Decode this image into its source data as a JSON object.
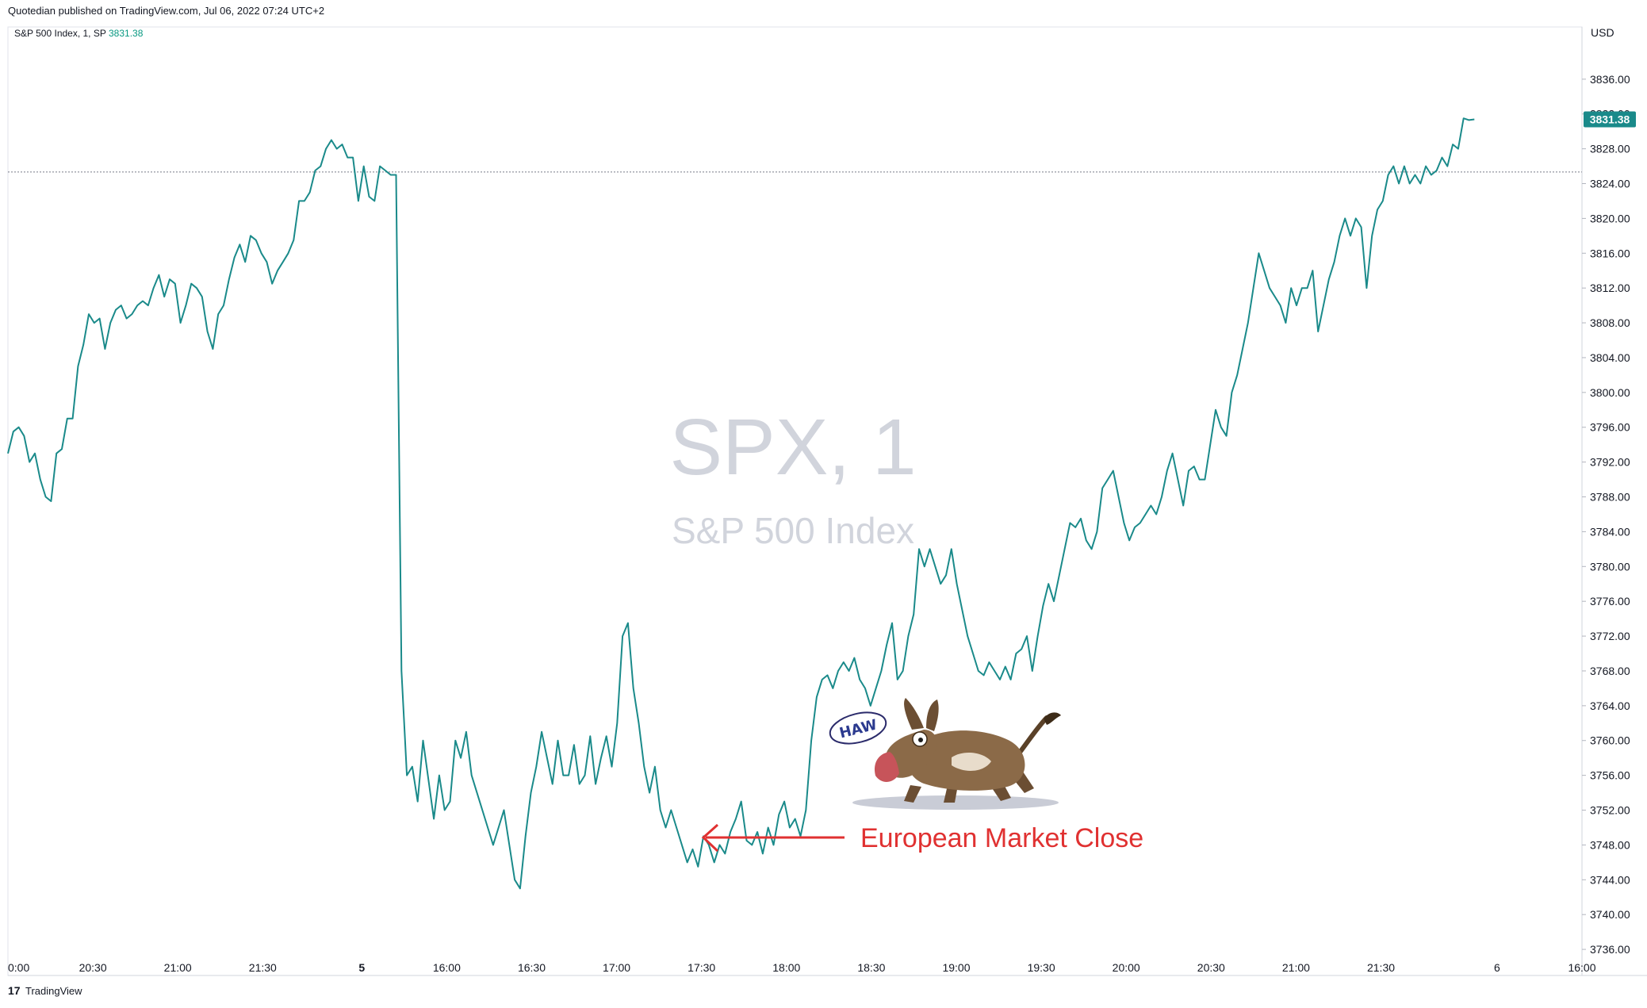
{
  "header": {
    "publisher": "Quotedian published on TradingView.com, Jul 06, 2022 07:24 UTC+2",
    "symbol": "S&P 500 Index, 1, SP",
    "last_value": "3831.38"
  },
  "watermark": {
    "symbol": "SPX, 1",
    "name": "S&P 500 Index"
  },
  "footer": {
    "brand": "TradingView"
  },
  "annotation": {
    "text": "European Market Close",
    "bubble_text": "HAW"
  },
  "colors": {
    "line": "#1a8a8a",
    "annotation": "#e03131",
    "price_label": "#1a8a8a",
    "grid": "#e0e3eb"
  },
  "chart_data": {
    "type": "line",
    "title": "",
    "currency": "USD",
    "ylim": [
      3733,
      3842
    ],
    "y_ticks": [
      "3836.00",
      "3832.00",
      "3828.00",
      "3824.00",
      "3820.00",
      "3816.00",
      "3812.00",
      "3808.00",
      "3804.00",
      "3800.00",
      "3796.00",
      "3792.00",
      "3788.00",
      "3784.00",
      "3780.00",
      "3776.00",
      "3772.00",
      "3768.00",
      "3764.00",
      "3760.00",
      "3756.00",
      "3752.00",
      "3748.00",
      "3744.00",
      "3740.00",
      "3736.00"
    ],
    "x_ticks": [
      {
        "label": "0:00",
        "i": 0
      },
      {
        "label": "20:30",
        "i": 30
      },
      {
        "label": "21:00",
        "i": 60
      },
      {
        "label": "21:30",
        "i": 90
      },
      {
        "label": "5",
        "i": 125,
        "bold": true
      },
      {
        "label": "16:00",
        "i": 155
      },
      {
        "label": "16:30",
        "i": 185
      },
      {
        "label": "17:00",
        "i": 215
      },
      {
        "label": "17:30",
        "i": 245
      },
      {
        "label": "18:00",
        "i": 275
      },
      {
        "label": "18:30",
        "i": 305
      },
      {
        "label": "19:00",
        "i": 335
      },
      {
        "label": "19:30",
        "i": 365
      },
      {
        "label": "20:00",
        "i": 395
      },
      {
        "label": "20:30",
        "i": 425
      },
      {
        "label": "21:00",
        "i": 455
      },
      {
        "label": "21:30",
        "i": 485
      },
      {
        "label": "6",
        "i": 526
      },
      {
        "label": "16:00",
        "i": 556
      }
    ],
    "x_index_range": [
      0,
      556
    ],
    "last_value": 3831.38,
    "prev_close": 3825.33,
    "series": [
      {
        "values": [
          3793,
          3795.5,
          3796,
          3795,
          3792,
          3793,
          3790,
          3788,
          3787.5,
          3793,
          3793.5,
          3797,
          3797,
          3803,
          3805.5,
          3809,
          3808,
          3808.5,
          3805,
          3808,
          3809.5,
          3810,
          3808.5,
          3809,
          3810,
          3810.5,
          3810,
          3812,
          3813.5,
          3811,
          3813,
          3812.5,
          3808,
          3810,
          3812.5,
          3812,
          3811,
          3807,
          3805,
          3809,
          3810,
          3813,
          3815.5,
          3817,
          3815,
          3818,
          3817.5,
          3816,
          3815,
          3812.5,
          3814,
          3815,
          3816,
          3817.5,
          3822,
          3822,
          3823,
          3825.5,
          3826,
          3828,
          3829,
          3828,
          3828.5,
          3827,
          3827,
          3822,
          3826,
          3822.5,
          3822,
          3826,
          3825.5,
          3825,
          3825,
          3768,
          3756,
          3757,
          3753,
          3760,
          3755.5,
          3751,
          3756,
          3752,
          3753,
          3760,
          3758,
          3761,
          3756,
          3754,
          3752,
          3750,
          3748,
          3750,
          3752,
          3748,
          3744,
          3743,
          3749,
          3754,
          3757,
          3761,
          3758,
          3755,
          3760,
          3756,
          3756,
          3759.5,
          3755,
          3756,
          3760.5,
          3755,
          3758,
          3760.5,
          3757,
          3762,
          3772,
          3773.5,
          3766,
          3762,
          3757,
          3754,
          3757,
          3752,
          3750,
          3752,
          3750,
          3748,
          3746,
          3747.5,
          3745.5,
          3749,
          3748,
          3746,
          3748,
          3747,
          3749.5,
          3751,
          3753,
          3748.5,
          3748,
          3749.5,
          3747,
          3750,
          3748,
          3751.5,
          3753,
          3750,
          3751,
          3749,
          3752,
          3760,
          3765,
          3767,
          3767.5,
          3766,
          3768,
          3769,
          3768,
          3769.5,
          3767,
          3766,
          3764,
          3766,
          3768,
          3771,
          3773.5,
          3767,
          3768,
          3772,
          3774.5,
          3782,
          3780,
          3782,
          3780,
          3778,
          3779,
          3782,
          3778,
          3775,
          3772,
          3770,
          3768,
          3767.5,
          3769,
          3768,
          3767,
          3768.5,
          3767,
          3770,
          3770.5,
          3772,
          3768,
          3772,
          3775.5,
          3778,
          3776,
          3779,
          3782,
          3785,
          3784.5,
          3785.5,
          3783,
          3782,
          3784,
          3789,
          3790,
          3791,
          3788,
          3785,
          3783,
          3784.5,
          3785,
          3786,
          3787,
          3786,
          3788,
          3791,
          3793,
          3790,
          3787,
          3791,
          3791.5,
          3790,
          3790,
          3794,
          3798,
          3796,
          3795,
          3800,
          3802,
          3805,
          3808,
          3812,
          3816,
          3814,
          3812,
          3811,
          3810,
          3808,
          3812,
          3810,
          3812,
          3812,
          3814,
          3807,
          3810,
          3813,
          3815,
          3818,
          3820,
          3818,
          3820,
          3819,
          3812,
          3818,
          3821,
          3822,
          3825,
          3826,
          3824,
          3826,
          3824,
          3825,
          3824,
          3826,
          3825,
          3825.5,
          3827,
          3826,
          3828.5,
          3828,
          3831.5,
          3831.3,
          3831.38
        ]
      }
    ]
  }
}
